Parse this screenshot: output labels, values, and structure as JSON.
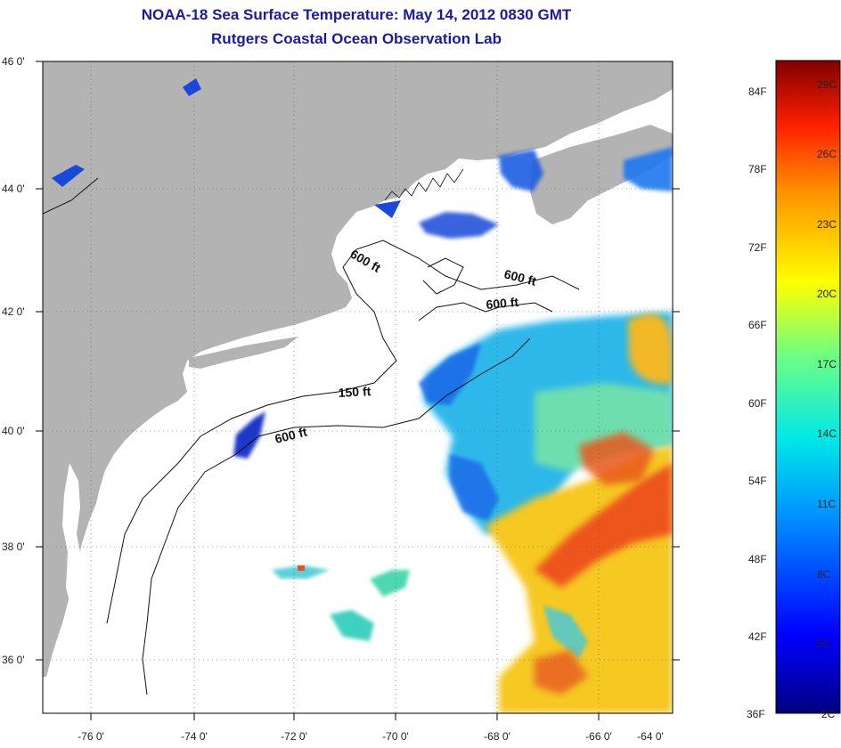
{
  "title": "NOAA-18 Sea Surface Temperature:  May 14, 2012 0830 GMT",
  "subtitle": "Rutgers Coastal Ocean Observation Lab",
  "axes": {
    "lon_labels": [
      "-76 0'",
      "-74 0'",
      "-72 0'",
      "-70 0'",
      "-68 0'",
      "-66 0'",
      "-64 0'"
    ],
    "lat_labels": [
      "46 0'",
      "44 0'",
      "42 0'",
      "40 0'",
      "38 0'",
      "36 0'"
    ]
  },
  "contours": [
    {
      "label": "600 ft"
    },
    {
      "label": "600 ft"
    },
    {
      "label": "600 ft"
    },
    {
      "label": "150 ft"
    },
    {
      "label": "600 ft"
    }
  ],
  "colorbar": {
    "fahrenheit": [
      "84F",
      "78F",
      "72F",
      "66F",
      "60F",
      "54F",
      "48F",
      "42F",
      "36F"
    ],
    "celsius": [
      "29C",
      "26C",
      "23C",
      "20C",
      "17C",
      "14C",
      "11C",
      "8C",
      "5C",
      "2C"
    ]
  },
  "colors": {
    "land": "#b3b3b3",
    "title": "#1a1aa6",
    "cold": "#1040d0",
    "cool": "#20c0e8",
    "warm": "#f0c020",
    "hot": "#e83018"
  }
}
